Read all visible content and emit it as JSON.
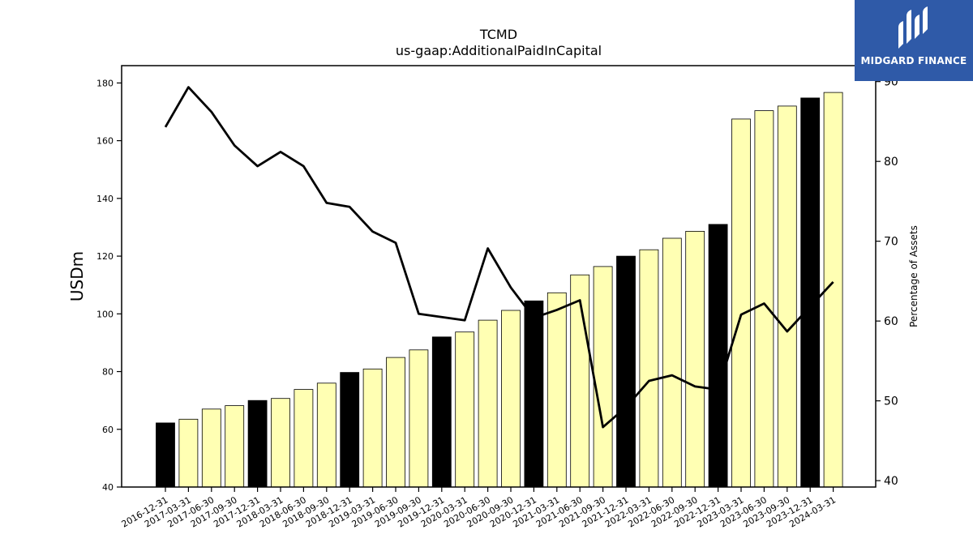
{
  "chart_data": {
    "type": "bar",
    "title": "TCMD",
    "subtitle": "us-gaap:AdditionalPaidInCapital",
    "ylabel": "USDm",
    "y2label": "Percentage of Assets",
    "ylim": [
      40,
      186
    ],
    "y2lim": [
      39.2,
      92
    ],
    "yticks": [
      40,
      60,
      80,
      100,
      120,
      140,
      160,
      180
    ],
    "y2ticks": [
      40,
      50,
      60,
      70,
      80,
      90
    ],
    "categories": [
      "2016-12-31",
      "2017-03-31",
      "2017-06-30",
      "2017-09-30",
      "2017-12-31",
      "2018-03-31",
      "2018-06-30",
      "2018-09-30",
      "2018-12-31",
      "2019-03-31",
      "2019-06-30",
      "2019-09-30",
      "2019-12-31",
      "2020-03-31",
      "2020-06-30",
      "2020-09-30",
      "2020-12-31",
      "2021-03-31",
      "2021-06-30",
      "2021-09-30",
      "2021-12-31",
      "2022-03-31",
      "2022-06-30",
      "2022-09-30",
      "2022-12-31",
      "2023-03-31",
      "2023-06-30",
      "2023-09-30",
      "2023-12-31",
      "2024-03-31"
    ],
    "series": [
      {
        "type": "bar",
        "values": [
          62.2,
          63.5,
          67.0,
          68.2,
          70.0,
          70.7,
          73.8,
          76.0,
          79.7,
          80.9,
          84.9,
          87.5,
          92.0,
          93.7,
          97.8,
          101.2,
          104.5,
          107.3,
          113.5,
          116.4,
          120.0,
          122.2,
          126.2,
          128.6,
          131.0,
          167.5,
          170.4,
          172.0,
          174.8,
          176.7
        ],
        "highlight_color": "#000000",
        "bar_color": "#ffffb3"
      },
      {
        "type": "line",
        "axis": "right",
        "values": [
          84.3,
          89.3,
          86.2,
          82.0,
          79.4,
          81.2,
          79.4,
          74.8,
          74.3,
          71.2,
          69.8,
          60.9,
          60.5,
          60.1,
          69.1,
          64.2,
          60.4,
          61.4,
          62.6,
          46.7,
          49.2,
          52.5,
          53.2,
          51.8,
          51.4,
          60.8,
          62.2,
          58.7,
          61.8,
          64.9
        ],
        "color": "#000000"
      }
    ]
  },
  "brand": {
    "name": "MIDGARD FINANCE",
    "color": "#2f5aa8"
  }
}
